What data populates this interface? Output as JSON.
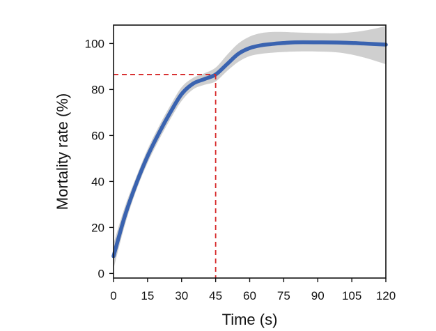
{
  "chart_data": {
    "type": "line",
    "title": "",
    "xlabel": "Time (s)",
    "ylabel": "Mortality rate (%)",
    "xlim": [
      0,
      120
    ],
    "ylim": [
      -2,
      108
    ],
    "x_ticks": [
      0,
      15,
      30,
      45,
      60,
      75,
      90,
      105,
      120
    ],
    "y_ticks": [
      0,
      20,
      40,
      60,
      80,
      100
    ],
    "grid": false,
    "legend": "none",
    "colors": {
      "line": "#3a63b0",
      "band": "#cfcfcf",
      "reference": "#d62728",
      "axis": "#111111"
    },
    "series": [
      {
        "x": [
          0,
          5,
          10,
          15,
          20,
          25,
          30,
          35,
          40,
          45,
          50,
          55,
          60,
          65,
          70,
          75,
          80,
          90,
          100,
          110,
          120
        ],
        "y": [
          7.5,
          25,
          39,
          51,
          61,
          70,
          78,
          82.5,
          84.5,
          86.5,
          91,
          95.5,
          98,
          99.2,
          99.8,
          100.2,
          100.5,
          100.5,
          100.4,
          100,
          99.5
        ],
        "lower": [
          2,
          21,
          36,
          48,
          58,
          67,
          75,
          80,
          82,
          83.5,
          88,
          92,
          94.5,
          95.5,
          96,
          96.3,
          96.5,
          96.5,
          96,
          94,
          91
        ],
        "upper": [
          13,
          29,
          42,
          54,
          64,
          73,
          81,
          85,
          87,
          89.5,
          95,
          100,
          103,
          104.5,
          105,
          105,
          104.8,
          104.5,
          104.5,
          105.5,
          107.5
        ]
      }
    ],
    "reference_lines": [
      {
        "type": "horizontal",
        "y": 86.5,
        "x_to": 45
      },
      {
        "type": "vertical",
        "x": 45,
        "y_to": 86.5
      }
    ]
  }
}
